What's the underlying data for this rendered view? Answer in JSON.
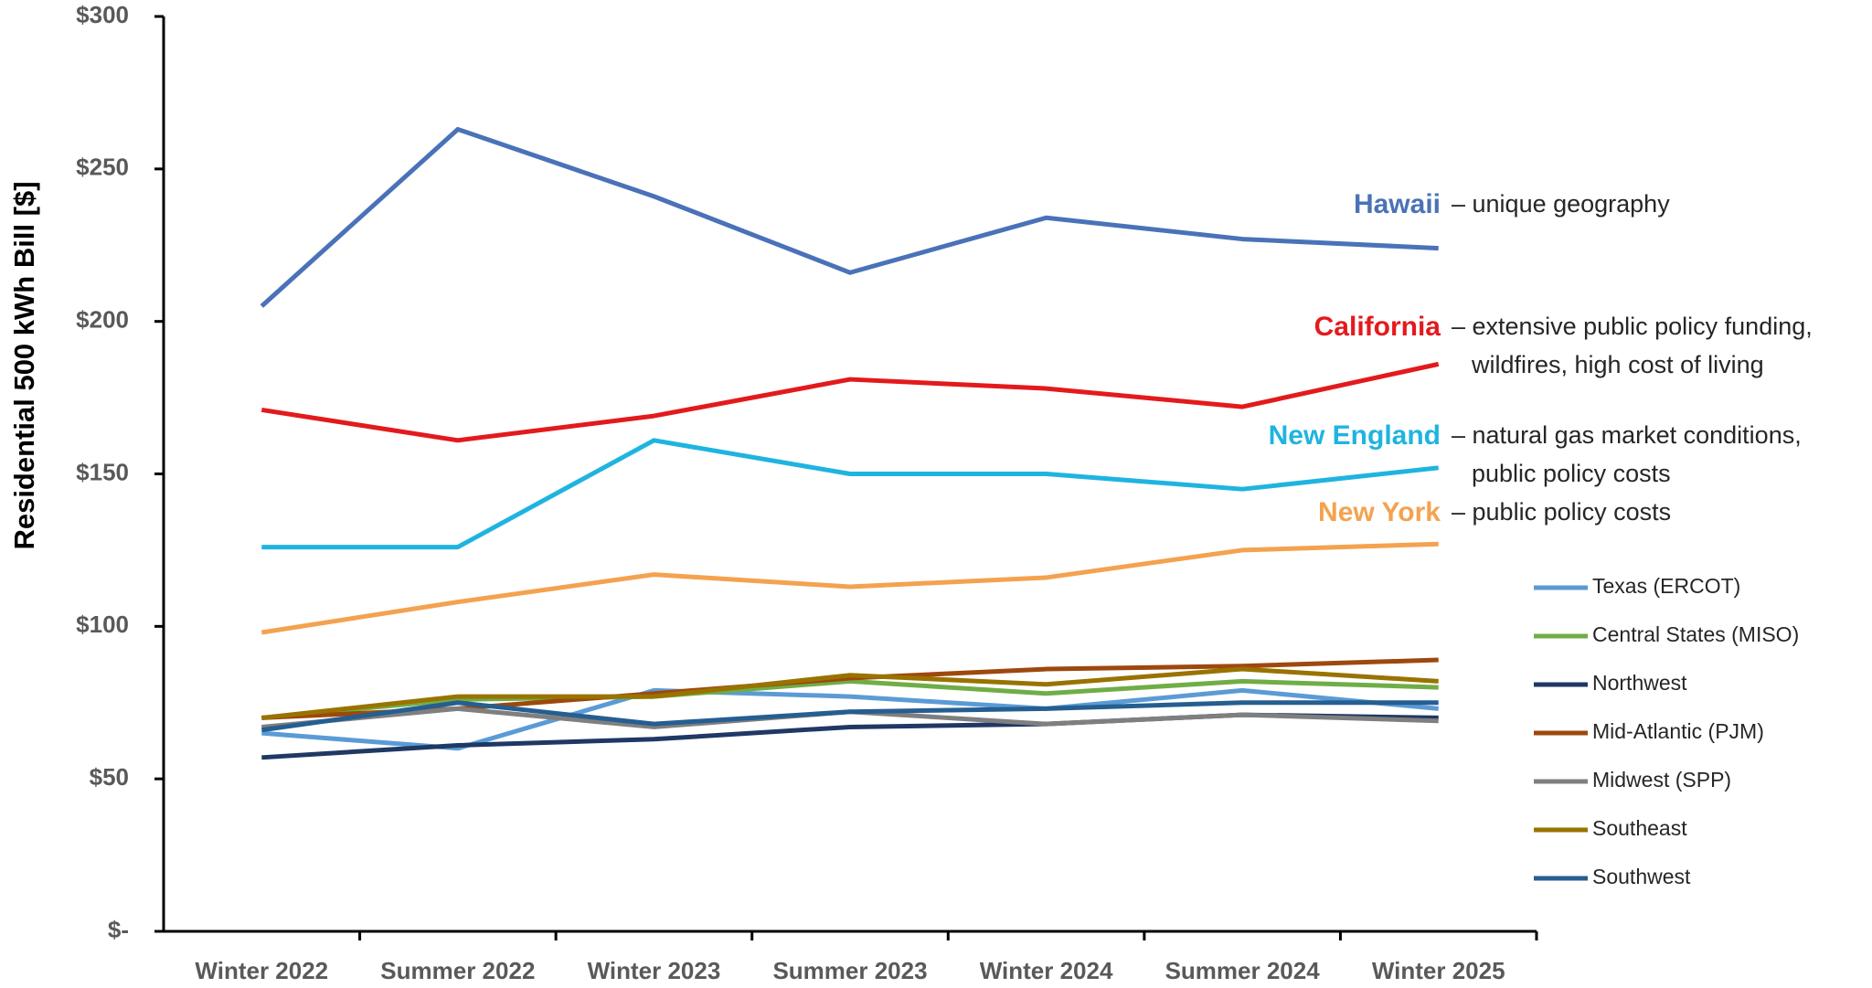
{
  "chart_data": {
    "type": "line",
    "y_label": "Residential 500 kWh Bill [$]",
    "categories": [
      "Winter 2022",
      "Summer 2022",
      "Winter 2023",
      "Summer 2023",
      "Winter 2024",
      "Summer 2024",
      "Winter 2025"
    ],
    "ylim": [
      0,
      300
    ],
    "yticks": [
      {
        "value": 0,
        "label": "$-"
      },
      {
        "value": 50,
        "label": "$50"
      },
      {
        "value": 100,
        "label": "$100"
      },
      {
        "value": 150,
        "label": "$150"
      },
      {
        "value": 200,
        "label": "$200"
      },
      {
        "value": 250,
        "label": "$250"
      },
      {
        "value": 300,
        "label": "$300"
      }
    ],
    "grid": false,
    "legend": "right",
    "series": [
      {
        "name": "Hawaii",
        "color": "#4a72b8",
        "values": [
          205,
          263,
          241,
          216,
          234,
          227,
          224
        ],
        "note": [
          "– unique geography"
        ]
      },
      {
        "name": "California",
        "color": "#e31a1c",
        "values": [
          171,
          161,
          169,
          181,
          178,
          172,
          186
        ],
        "note": [
          "– extensive public policy funding,",
          "wildfires, high cost of living"
        ]
      },
      {
        "name": "New England",
        "color": "#1fb4e0",
        "values": [
          126,
          126,
          161,
          150,
          150,
          145,
          152
        ],
        "note": [
          "– natural gas market conditions,",
          "public policy costs"
        ]
      },
      {
        "name": "New York",
        "color": "#f4a24f",
        "values": [
          98,
          108,
          117,
          113,
          116,
          125,
          127
        ],
        "note": [
          "– public policy costs"
        ]
      },
      {
        "name": "Texas (ERCOT)",
        "color": "#5b9bd5",
        "values": [
          65,
          60,
          79,
          77,
          73,
          79,
          73
        ]
      },
      {
        "name": "Central States (MISO)",
        "color": "#70ad47",
        "values": [
          70,
          76,
          77,
          82,
          78,
          82,
          80
        ]
      },
      {
        "name": "Northwest",
        "color": "#1f3864",
        "values": [
          57,
          61,
          63,
          67,
          68,
          71,
          70
        ]
      },
      {
        "name": "Mid-Atlantic (PJM)",
        "color": "#9e480e",
        "values": [
          70,
          73,
          78,
          83,
          86,
          87,
          89
        ]
      },
      {
        "name": "Midwest (SPP)",
        "color": "#7f7f7f",
        "values": [
          67,
          73,
          67,
          72,
          68,
          71,
          69
        ]
      },
      {
        "name": "Southeast",
        "color": "#997300",
        "values": [
          70,
          77,
          77,
          84,
          81,
          86,
          82
        ]
      },
      {
        "name": "Southwest",
        "color": "#255e91",
        "values": [
          66,
          75,
          68,
          72,
          73,
          75,
          75
        ]
      }
    ]
  }
}
